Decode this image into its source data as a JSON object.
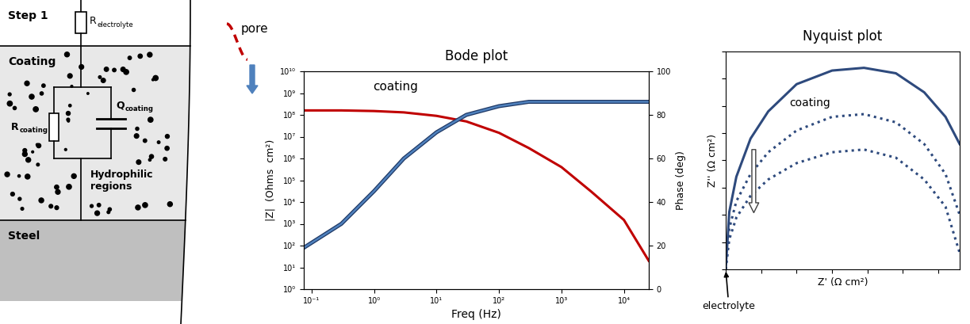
{
  "diagram": {
    "step": "Step 1",
    "electrolyte_resistor": {
      "symbol": "R",
      "subscript": "electrolyte"
    },
    "coating_resistor": {
      "symbol": "R",
      "subscript": "coating"
    },
    "coating_cpe": {
      "symbol": "Q",
      "subscript": "coating"
    },
    "layers": {
      "coating": "Coating",
      "steel": "Steel"
    },
    "region_label": "Hydrophilic\nregions",
    "pore_label": "pore"
  },
  "chart_data": [
    {
      "type": "line",
      "title": "Bode plot",
      "x_label": "Freq (Hz)",
      "y_label": "|Z|  (Ohms  cm²)",
      "y2_label": "Phase (deg)",
      "annotations": [
        "coating"
      ],
      "log": true,
      "x": [
        0.075,
        0.3,
        1,
        3,
        10,
        30,
        100,
        300,
        1000,
        3000,
        10000,
        25000
      ],
      "series": [
        {
          "color": "#c00000",
          "line_style": "solid",
          "values": [
            160000000,
            160000000,
            150000000,
            130000000,
            90000000,
            50000000,
            15000000,
            3000000,
            400000,
            30000,
            1500,
            20
          ]
        },
        {
          "color": "#4f81bd",
          "line_style": "solid",
          "axis": "y2",
          "values": [
            19,
            30,
            45,
            60,
            72,
            80,
            84,
            86,
            86,
            86,
            86,
            86
          ]
        }
      ],
      "xlim": [
        0.075,
        25000
      ],
      "xticks": [
        {
          "value": 0.1,
          "label": "10⁻¹"
        },
        {
          "value": 1,
          "label": "10⁰"
        },
        {
          "value": 10,
          "label": "10¹"
        },
        {
          "value": 100,
          "label": "10²"
        },
        {
          "value": 1000,
          "label": "10³"
        },
        {
          "value": 10000,
          "label": "10⁴"
        }
      ],
      "ylim": [
        1,
        10000000000
      ],
      "yticks": [
        {
          "value": 1,
          "label": "10⁰"
        },
        {
          "value": 10,
          "label": "10¹"
        },
        {
          "value": 100,
          "label": "10²"
        },
        {
          "value": 1000,
          "label": "10³"
        },
        {
          "value": 10000,
          "label": "10⁴"
        },
        {
          "value": 100000,
          "label": "10⁵"
        },
        {
          "value": 1000000,
          "label": "10⁶"
        },
        {
          "value": 10000000,
          "label": "10⁷"
        },
        {
          "value": 100000000,
          "label": "10⁸"
        },
        {
          "value": 1000000000,
          "label": "10⁹"
        },
        {
          "value": 10000000000,
          "label": "10¹⁰"
        }
      ],
      "y2lim": [
        0,
        100
      ],
      "y2ticks": [
        0,
        20,
        40,
        60,
        80,
        100
      ]
    },
    {
      "type": "line",
      "title": "Nyquist plot",
      "x_label": "Z' (Ω cm²)",
      "y_label": "Z'' (Ω cm²)",
      "annotations": [
        "coating",
        "electrolyte"
      ],
      "tick_labels": false,
      "x": [
        0,
        0.1,
        0.3,
        0.7,
        1.2,
        2,
        3,
        3.9,
        4.8,
        5.6,
        6.2,
        6.6
      ],
      "series": [
        {
          "color": "#2e4a7d",
          "line_style": "solid",
          "values": [
            0,
            2.1,
            3.4,
            4.8,
            5.8,
            6.8,
            7.3,
            7.4,
            7.2,
            6.5,
            5.6,
            4.6
          ]
        },
        {
          "color": "#2e4a7d",
          "line_style": "dotted",
          "values": [
            0,
            1.5,
            2.5,
            3.5,
            4.3,
            5.1,
            5.6,
            5.7,
            5.4,
            4.6,
            3.5,
            2.0
          ]
        },
        {
          "color": "#2e4a7d",
          "line_style": "dotted",
          "values": [
            0,
            1.1,
            1.9,
            2.7,
            3.3,
            3.9,
            4.3,
            4.4,
            4.1,
            3.3,
            2.3,
            0.6
          ]
        }
      ],
      "xlim": [
        0,
        6.6
      ],
      "xticks": [
        0,
        1,
        2,
        3,
        4,
        5,
        6
      ],
      "ylim": [
        0,
        8
      ],
      "yticks": [
        0,
        1,
        2,
        3,
        4,
        5,
        6,
        7,
        8
      ]
    }
  ]
}
